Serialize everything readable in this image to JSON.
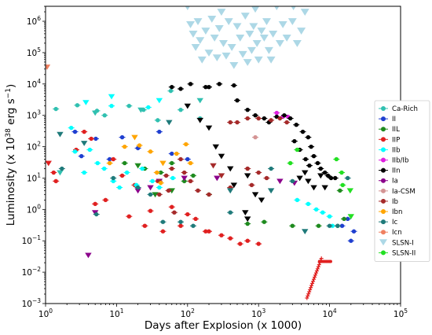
{
  "chart_data": {
    "type": "scatter",
    "xlabel": "Days after Explosion (x 1000)",
    "ylabel": "Luminosity (x 10",
    "ylabel_sup": "38",
    "ylabel_tail": " erg s",
    "ylabel_sup2": "−1",
    "ylabel_close": ")",
    "xscale": "log",
    "yscale": "log",
    "xlim": [
      1,
      100000
    ],
    "ylim": [
      0.001,
      3000000
    ],
    "x_ticks": [
      {
        "value": 1,
        "base": "10",
        "exp": "0"
      },
      {
        "value": 10,
        "base": "10",
        "exp": "1"
      },
      {
        "value": 100,
        "base": "10",
        "exp": "2"
      },
      {
        "value": 1000,
        "base": "10",
        "exp": "3"
      },
      {
        "value": 10000,
        "base": "10",
        "exp": "4"
      },
      {
        "value": 100000,
        "base": "10",
        "exp": "5"
      }
    ],
    "y_ticks": [
      {
        "value": 0.001,
        "base": "10",
        "exp": "−3"
      },
      {
        "value": 0.01,
        "base": "10",
        "exp": "−2"
      },
      {
        "value": 0.1,
        "base": "10",
        "exp": "−1"
      },
      {
        "value": 1,
        "base": "10",
        "exp": "0"
      },
      {
        "value": 10,
        "base": "10",
        "exp": "1"
      },
      {
        "value": 100,
        "base": "10",
        "exp": "2"
      },
      {
        "value": 1000,
        "base": "10",
        "exp": "3"
      },
      {
        "value": 10000,
        "base": "10",
        "exp": "4"
      },
      {
        "value": 100000,
        "base": "10",
        "exp": "5"
      },
      {
        "value": 1000000,
        "base": "10",
        "exp": "6"
      }
    ],
    "grid": false,
    "legend_position": "right",
    "series": [
      {
        "name": "Ca-Rich",
        "color": "#30c0b0",
        "marker": "circle",
        "points": [
          [
            1.4,
            1600
          ],
          [
            2.8,
            2100
          ],
          [
            5.3,
            1400
          ],
          [
            6.8,
            1000
          ],
          [
            15,
            2000
          ],
          [
            24,
            1500
          ],
          [
            38,
            700
          ],
          [
            58,
            6000
          ],
          [
            80,
            1500
          ],
          [
            150,
            800
          ]
        ],
        "upper_limits": [
          [
            1.6,
            15
          ],
          [
            5,
            1200
          ],
          [
            22,
            1500
          ],
          [
            150,
            3000
          ]
        ]
      },
      {
        "name": "II",
        "color": "#1f3fd0",
        "marker": "circle",
        "points": [
          [
            2.6,
            300
          ],
          [
            3.2,
            50
          ],
          [
            5.1,
            180
          ],
          [
            8,
            40
          ],
          [
            12,
            200
          ],
          [
            20,
            90
          ],
          [
            40,
            300
          ],
          [
            60,
            60
          ],
          [
            100,
            40
          ],
          [
            18000,
            0.5
          ],
          [
            20000,
            0.1
          ],
          [
            22000,
            0.2
          ],
          [
            15000,
            0.3
          ]
        ],
        "upper_limits": []
      },
      {
        "name": "IIL",
        "color": "#1e8a1e",
        "marker": "circle",
        "points": [
          [
            13,
            30
          ],
          [
            25,
            20
          ],
          [
            42,
            15
          ],
          [
            60,
            30
          ],
          [
            90,
            8
          ],
          [
            120,
            12
          ],
          [
            200,
            3
          ],
          [
            700,
            0.35
          ],
          [
            1200,
            0.4
          ],
          [
            3000,
            0.3
          ],
          [
            7000,
            0.3
          ],
          [
            13000,
            0.3
          ],
          [
            14000,
            4
          ],
          [
            16000,
            0.5
          ]
        ],
        "upper_limits": [
          [
            20,
            25
          ],
          [
            35,
            3
          ],
          [
            60,
            4
          ]
        ]
      },
      {
        "name": "IIP",
        "color": "#e02020",
        "marker": "circle",
        "points": [
          [
            1.3,
            15
          ],
          [
            2.7,
            80
          ],
          [
            3.5,
            300
          ],
          [
            4.4,
            180
          ],
          [
            5,
            1.5
          ],
          [
            7,
            2
          ],
          [
            9,
            40
          ],
          [
            12,
            12
          ],
          [
            15,
            0.6
          ],
          [
            18,
            6
          ],
          [
            25,
            0.3
          ],
          [
            30,
            0.9
          ],
          [
            38,
            8
          ],
          [
            45,
            0.2
          ],
          [
            60,
            1.2
          ],
          [
            80,
            0.3
          ],
          [
            100,
            0.7
          ],
          [
            130,
            0.5
          ],
          [
            180,
            0.2
          ],
          [
            300,
            0.15
          ],
          [
            400,
            0.12
          ],
          [
            550,
            0.08
          ],
          [
            700,
            0.1
          ],
          [
            1000,
            0.08
          ],
          [
            200,
            0.2
          ],
          [
            1.4,
            8
          ]
        ],
        "upper_limits": [
          [
            1.1,
            30
          ]
        ]
      },
      {
        "name": "IIb",
        "color": "#00ffff",
        "marker": "circle",
        "points": [
          [
            2.3,
            400
          ],
          [
            2.6,
            70
          ],
          [
            3.5,
            15
          ],
          [
            4.2,
            80
          ],
          [
            5.4,
            30
          ],
          [
            6.7,
            20
          ],
          [
            8.5,
            2000
          ],
          [
            9,
            8
          ],
          [
            11,
            5
          ],
          [
            14,
            15
          ],
          [
            19,
            6
          ],
          [
            23,
            20
          ],
          [
            28,
            1800
          ],
          [
            32,
            8
          ],
          [
            40,
            5
          ],
          [
            62,
            10
          ],
          [
            3500,
            2
          ],
          [
            5000,
            1.5
          ],
          [
            6500,
            1
          ],
          [
            8000,
            0.8
          ],
          [
            10000,
            0.6
          ],
          [
            11000,
            0.3
          ]
        ],
        "upper_limits": [
          [
            3.7,
            2600
          ],
          [
            8.5,
            4000
          ],
          [
            40,
            3000
          ]
        ]
      },
      {
        "name": "IIb/Ib",
        "color": "#e020e0",
        "marker": "circle",
        "points": [
          [
            1800,
            1200
          ],
          [
            2200,
            900
          ],
          [
            2600,
            900
          ]
        ],
        "upper_limits": []
      },
      {
        "name": "IIn",
        "color": "#000000",
        "marker": "circle",
        "points": [
          [
            60,
            8000
          ],
          [
            80,
            7000
          ],
          [
            110,
            10000
          ],
          [
            180,
            8000
          ],
          [
            200,
            8000
          ],
          [
            280,
            10000
          ],
          [
            450,
            9000
          ],
          [
            500,
            3000
          ],
          [
            700,
            1500
          ],
          [
            900,
            1000
          ],
          [
            1200,
            800
          ],
          [
            1400,
            600
          ],
          [
            1800,
            900
          ],
          [
            2300,
            1000
          ],
          [
            2800,
            800
          ],
          [
            3400,
            500
          ],
          [
            4200,
            300
          ],
          [
            5000,
            200
          ],
          [
            5500,
            100
          ],
          [
            6000,
            50
          ],
          [
            6800,
            30
          ],
          [
            7500,
            20
          ],
          [
            8600,
            15
          ],
          [
            9500,
            12
          ],
          [
            10500,
            10
          ],
          [
            12000,
            10
          ],
          [
            3200,
            150
          ],
          [
            3800,
            80
          ],
          [
            4600,
            40
          ],
          [
            5200,
            25
          ]
        ],
        "upper_limits": [
          [
            100,
            2000
          ],
          [
            150,
            700
          ],
          [
            200,
            400
          ],
          [
            250,
            100
          ],
          [
            300,
            50
          ],
          [
            400,
            20
          ],
          [
            450,
            6
          ],
          [
            700,
            12
          ],
          [
            900,
            3
          ],
          [
            1100,
            2
          ],
          [
            3800,
            10
          ],
          [
            4500,
            15
          ],
          [
            5000,
            8
          ],
          [
            6000,
            5
          ],
          [
            7500,
            12
          ],
          [
            8600,
            5
          ],
          [
            650,
            0.8
          ],
          [
            700,
            0.5
          ]
        ]
      },
      {
        "name": "Ia",
        "color": "#8b008b",
        "marker": "circle",
        "points": [],
        "upper_limits": [
          [
            4,
            0.035
          ],
          [
            5,
            0.8
          ],
          [
            20,
            4
          ],
          [
            30,
            5
          ],
          [
            40,
            8
          ],
          [
            90,
            10
          ],
          [
            260,
            10
          ],
          [
            2000,
            8
          ],
          [
            3200,
            7
          ]
        ]
      },
      {
        "name": "Ia-CSM",
        "color": "#d49494",
        "marker": "circle",
        "points": [
          [
            900,
            200
          ],
          [
            700,
            20
          ]
        ],
        "upper_limits": []
      },
      {
        "name": "Ib",
        "color": "#a52a2a",
        "marker": "circle",
        "points": [
          [
            40,
            3
          ],
          [
            54,
            4
          ],
          [
            60,
            20
          ],
          [
            65,
            0.8
          ],
          [
            80,
            40
          ],
          [
            90,
            15
          ],
          [
            110,
            8
          ],
          [
            140,
            4
          ],
          [
            200,
            3
          ],
          [
            400,
            600
          ],
          [
            500,
            600
          ],
          [
            700,
            800
          ],
          [
            1000,
            800
          ],
          [
            1500,
            700
          ],
          [
            2000,
            800
          ],
          [
            2500,
            600
          ],
          [
            700,
            20
          ],
          [
            1000,
            15
          ],
          [
            1300,
            10
          ],
          [
            800,
            6
          ],
          [
            400,
            5
          ],
          [
            40,
            8
          ],
          [
            50,
            12
          ]
        ],
        "upper_limits": [
          [
            230,
            25
          ],
          [
            300,
            12
          ]
        ]
      },
      {
        "name": "Ibn",
        "color": "#ffa500",
        "marker": "circle",
        "points": [
          [
            8,
            30
          ],
          [
            13,
            100
          ],
          [
            21,
            110
          ],
          [
            30,
            70
          ],
          [
            37,
            15
          ],
          [
            42,
            7
          ],
          [
            70,
            60
          ],
          [
            95,
            120
          ],
          [
            110,
            30
          ]
        ],
        "upper_limits": [
          [
            18,
            200
          ],
          [
            45,
            30
          ]
        ]
      },
      {
        "name": "Ic",
        "color": "#1f7a7a",
        "marker": "circle",
        "points": [
          [
            1.7,
            20
          ],
          [
            5.2,
            0.7
          ],
          [
            9,
            10
          ],
          [
            20,
            5
          ],
          [
            30,
            3
          ],
          [
            45,
            0.4
          ],
          [
            80,
            0.4
          ],
          [
            120,
            0.3
          ],
          [
            400,
            0.8
          ],
          [
            1500,
            20
          ],
          [
            3000,
            8
          ],
          [
            10000,
            0.3
          ],
          [
            13000,
            0.3
          ],
          [
            18000,
            10
          ]
        ],
        "upper_limits": [
          [
            1.6,
            250
          ],
          [
            3.5,
            130
          ],
          [
            55,
            600
          ],
          [
            400,
            4
          ],
          [
            1500,
            4
          ],
          [
            4500,
            0.2
          ]
        ]
      },
      {
        "name": "Icn",
        "color": "#f08060",
        "marker": "circle",
        "points": [],
        "upper_limits": [
          [
            1.05,
            35000
          ]
        ]
      },
      {
        "name": "SLSN-I",
        "color": "#add8e6",
        "marker": "triangle_down",
        "points": [],
        "upper_limits": [
          [
            100,
            3000000
          ],
          [
            110,
            800000
          ],
          [
            120,
            400000
          ],
          [
            130,
            150000
          ],
          [
            140,
            1000000
          ],
          [
            150,
            250000
          ],
          [
            160,
            60000
          ],
          [
            180,
            500000
          ],
          [
            200,
            100000
          ],
          [
            220,
            1200000
          ],
          [
            240,
            300000
          ],
          [
            260,
            70000
          ],
          [
            280,
            600000
          ],
          [
            300,
            2000000
          ],
          [
            320,
            200000
          ],
          [
            350,
            80000
          ],
          [
            380,
            1000000
          ],
          [
            420,
            150000
          ],
          [
            450,
            40000
          ],
          [
            500,
            700000
          ],
          [
            550,
            300000
          ],
          [
            600,
            90000
          ],
          [
            650,
            1500000
          ],
          [
            700,
            50000
          ],
          [
            750,
            400000
          ],
          [
            800,
            120000
          ],
          [
            850,
            700000
          ],
          [
            900,
            2500000
          ],
          [
            950,
            200000
          ],
          [
            1000,
            60000
          ],
          [
            1100,
            500000
          ],
          [
            1200,
            300000
          ],
          [
            1300,
            1000000
          ],
          [
            1400,
            120000
          ],
          [
            1500,
            60000
          ],
          [
            1600,
            400000
          ],
          [
            1800,
            3000000
          ],
          [
            2000,
            200000
          ],
          [
            2200,
            800000
          ],
          [
            2500,
            300000
          ],
          [
            3000,
            1000000
          ],
          [
            3500,
            200000
          ],
          [
            4000,
            500000
          ],
          [
            4500,
            2000000
          ],
          [
            3100,
            3000000
          ]
        ]
      },
      {
        "name": "SLSN-II",
        "color": "#22e022",
        "marker": "circle",
        "points": [
          [
            2800,
            30
          ],
          [
            3500,
            80
          ],
          [
            12500,
            40
          ],
          [
            14800,
            15
          ],
          [
            15300,
            6
          ]
        ],
        "upper_limits": [
          [
            19500,
            4
          ],
          [
            20000,
            0.6
          ]
        ]
      }
    ]
  }
}
